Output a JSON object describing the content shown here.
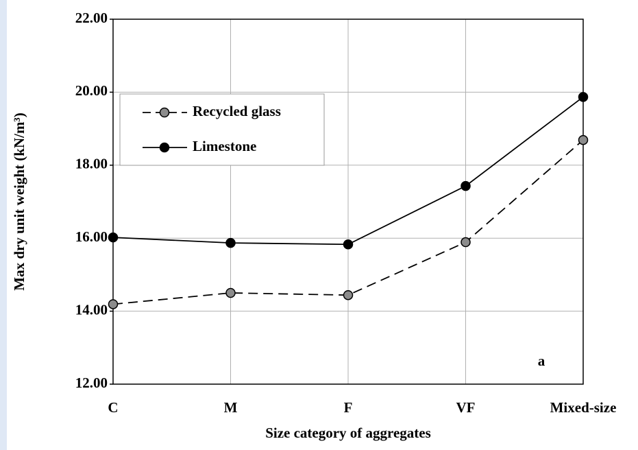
{
  "chart_data": {
    "type": "line",
    "x_label": "Size category of aggregates",
    "y_label": "Max dry unit weight (kN/m³)",
    "annotation": "a",
    "categories": [
      "C",
      "M",
      "F",
      "VF",
      "Mixed-size"
    ],
    "series": [
      {
        "name": "Recycled glass",
        "color": "#8c8c8c",
        "dashed": true,
        "values": [
          14.19,
          14.5,
          14.44,
          15.89,
          18.69
        ]
      },
      {
        "name": "Limestone",
        "color": "#000000",
        "dashed": false,
        "values": [
          16.02,
          15.87,
          15.83,
          17.43,
          19.87
        ]
      }
    ],
    "ylim": [
      12,
      22
    ],
    "yticks": [
      {
        "value": 12,
        "label": "12.00"
      },
      {
        "value": 14,
        "label": "14.00"
      },
      {
        "value": 16,
        "label": "16.00"
      },
      {
        "value": 18,
        "label": "18.00"
      },
      {
        "value": 20,
        "label": "20.00"
      },
      {
        "value": 22,
        "label": "22.00"
      }
    ],
    "grid": true,
    "legend": "upper left"
  }
}
